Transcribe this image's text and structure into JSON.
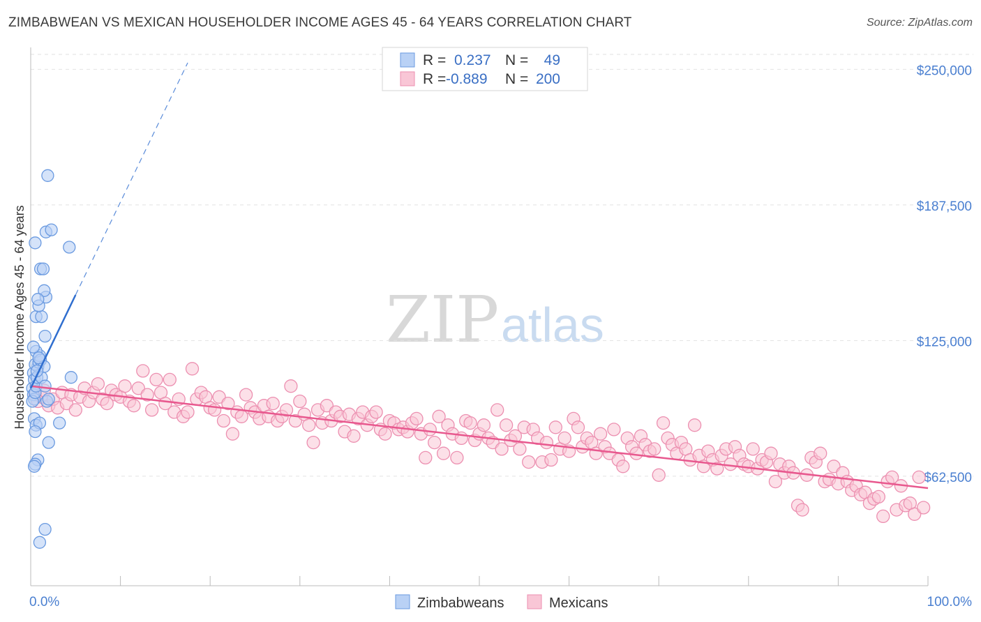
{
  "title": "ZIMBABWEAN VS MEXICAN HOUSEHOLDER INCOME AGES 45 - 64 YEARS CORRELATION CHART",
  "source": "Source: ZipAtlas.com",
  "watermark": {
    "zip": "ZIP",
    "atlas": "atlas"
  },
  "legend": {
    "r_label": "R =",
    "n_label": "N =",
    "rows": [
      {
        "r": "0.237",
        "n": "49"
      },
      {
        "r": "-0.889",
        "n": "200"
      }
    ]
  },
  "bottom_legend": [
    "Zimbabweans",
    "Mexicans"
  ],
  "colors": {
    "zimbabwean_fill": "#b9d1f5",
    "zimbabwean_stroke": "#6a9ae0",
    "zimbabwean_line": "#2f6ecf",
    "mexican_fill": "#f9c6d6",
    "mexican_stroke": "#ec8fb0",
    "mexican_line": "#e8588e",
    "tick_label": "#4a7fd0"
  },
  "chart_data": {
    "type": "scatter",
    "title": "ZIMBABWEAN VS MEXICAN HOUSEHOLDER INCOME AGES 45 - 64 YEARS CORRELATION CHART",
    "xlabel": "",
    "ylabel": "Householder Income Ages 45 - 64 years",
    "xlim": [
      0,
      100
    ],
    "ylim": [
      12000,
      262000
    ],
    "x_tick_labels": [
      "0.0%",
      "100.0%"
    ],
    "y_ticks": [
      62500,
      125000,
      187500,
      250000
    ],
    "y_tick_labels": [
      "$62,500",
      "$125,000",
      "$187,500",
      "$250,000"
    ],
    "grid": "horizontal dashed",
    "legend_position": "top-center",
    "series": [
      {
        "name": "Zimbabweans",
        "r": 0.237,
        "n": 49,
        "trend": {
          "x0": 0,
          "y0": 103000,
          "x1": 5,
          "y1": 146000,
          "dashed_to": [
            17.5,
            253000
          ]
        },
        "points": [
          [
            0.2,
            103000
          ],
          [
            0.3,
            100000
          ],
          [
            0.4,
            98000
          ],
          [
            0.2,
            97000
          ],
          [
            0.5,
            101000
          ],
          [
            0.3,
            110000
          ],
          [
            0.4,
            107000
          ],
          [
            0.6,
            104000
          ],
          [
            0.7,
            108000
          ],
          [
            0.8,
            113000
          ],
          [
            0.5,
            114000
          ],
          [
            0.9,
            115000
          ],
          [
            1.0,
            118000
          ],
          [
            0.6,
            120000
          ],
          [
            1.1,
            116000
          ],
          [
            0.3,
            122000
          ],
          [
            1.2,
            108000
          ],
          [
            1.5,
            113000
          ],
          [
            1.6,
            104000
          ],
          [
            1.8,
            97000
          ],
          [
            2.0,
            98000
          ],
          [
            0.4,
            89000
          ],
          [
            0.6,
            86000
          ],
          [
            1.0,
            87000
          ],
          [
            3.2,
            87000
          ],
          [
            0.5,
            83000
          ],
          [
            2.0,
            78000
          ],
          [
            0.8,
            70000
          ],
          [
            0.5,
            68000
          ],
          [
            0.4,
            67000
          ],
          [
            0.6,
            136000
          ],
          [
            1.2,
            136000
          ],
          [
            0.9,
            141000
          ],
          [
            1.7,
            145000
          ],
          [
            1.5,
            148000
          ],
          [
            0.8,
            144000
          ],
          [
            1.1,
            158000
          ],
          [
            1.4,
            158000
          ],
          [
            0.5,
            170000
          ],
          [
            1.7,
            175000
          ],
          [
            2.3,
            176000
          ],
          [
            4.3,
            168000
          ],
          [
            1.9,
            201000
          ],
          [
            1.6,
            127000
          ],
          [
            0.9,
            117000
          ],
          [
            4.5,
            108000
          ],
          [
            1.6,
            38000
          ],
          [
            1.0,
            32000
          ],
          [
            0.7,
            111000
          ]
        ]
      },
      {
        "name": "Mexicans",
        "r": -0.889,
        "n": 200,
        "trend": {
          "x0": 0,
          "y0": 104000,
          "x1": 100,
          "y1": 57000
        },
        "points": [
          [
            0.5,
            100000
          ],
          [
            0.8,
            97000
          ],
          [
            1.2,
            99000
          ],
          [
            1.5,
            102000
          ],
          [
            2.0,
            95000
          ],
          [
            2.5,
            98000
          ],
          [
            3.0,
            94000
          ],
          [
            3.5,
            101000
          ],
          [
            4.0,
            96000
          ],
          [
            4.5,
            100000
          ],
          [
            5.0,
            93000
          ],
          [
            5.5,
            99000
          ],
          [
            6.0,
            103000
          ],
          [
            6.5,
            97000
          ],
          [
            7.0,
            101000
          ],
          [
            7.5,
            105000
          ],
          [
            8.0,
            98000
          ],
          [
            8.5,
            96000
          ],
          [
            9.0,
            102000
          ],
          [
            9.5,
            100000
          ],
          [
            10.0,
            99000
          ],
          [
            10.5,
            104000
          ],
          [
            11.0,
            97000
          ],
          [
            11.5,
            95000
          ],
          [
            12.0,
            103000
          ],
          [
            12.5,
            111000
          ],
          [
            13.0,
            100000
          ],
          [
            13.5,
            93000
          ],
          [
            14.0,
            107000
          ],
          [
            14.5,
            101000
          ],
          [
            15.0,
            96000
          ],
          [
            15.5,
            107000
          ],
          [
            16.0,
            92000
          ],
          [
            16.5,
            98000
          ],
          [
            17.0,
            90000
          ],
          [
            17.5,
            92000
          ],
          [
            18.0,
            112000
          ],
          [
            18.5,
            98000
          ],
          [
            19.0,
            101000
          ],
          [
            19.5,
            99000
          ],
          [
            20.0,
            94000
          ],
          [
            20.5,
            93000
          ],
          [
            21.0,
            99000
          ],
          [
            21.5,
            88000
          ],
          [
            22.0,
            96000
          ],
          [
            22.5,
            82000
          ],
          [
            23.0,
            92000
          ],
          [
            23.5,
            90000
          ],
          [
            24.0,
            100000
          ],
          [
            24.5,
            94000
          ],
          [
            25.0,
            92000
          ],
          [
            25.5,
            89000
          ],
          [
            26.0,
            95000
          ],
          [
            26.5,
            90000
          ],
          [
            27.0,
            96000
          ],
          [
            27.5,
            88000
          ],
          [
            28.0,
            90000
          ],
          [
            28.5,
            93000
          ],
          [
            29.0,
            104000
          ],
          [
            29.5,
            88000
          ],
          [
            30.0,
            97000
          ],
          [
            30.5,
            91000
          ],
          [
            31.0,
            86000
          ],
          [
            31.5,
            78000
          ],
          [
            32.0,
            93000
          ],
          [
            32.5,
            87000
          ],
          [
            33.0,
            95000
          ],
          [
            33.5,
            88000
          ],
          [
            34.0,
            92000
          ],
          [
            34.5,
            90000
          ],
          [
            35.0,
            83000
          ],
          [
            35.5,
            91000
          ],
          [
            36.0,
            81000
          ],
          [
            36.5,
            89000
          ],
          [
            37.0,
            92000
          ],
          [
            37.5,
            86000
          ],
          [
            38.0,
            90000
          ],
          [
            38.5,
            92000
          ],
          [
            39.0,
            84000
          ],
          [
            39.5,
            82000
          ],
          [
            40.0,
            88000
          ],
          [
            40.5,
            87000
          ],
          [
            41.0,
            84000
          ],
          [
            41.5,
            85000
          ],
          [
            42.0,
            83000
          ],
          [
            42.5,
            87000
          ],
          [
            43.0,
            89000
          ],
          [
            43.5,
            82000
          ],
          [
            44.0,
            71000
          ],
          [
            44.5,
            84000
          ],
          [
            45.0,
            78000
          ],
          [
            45.5,
            90000
          ],
          [
            46.0,
            73000
          ],
          [
            46.5,
            86000
          ],
          [
            47.0,
            82000
          ],
          [
            47.5,
            71000
          ],
          [
            48.0,
            80000
          ],
          [
            48.5,
            88000
          ],
          [
            49.0,
            87000
          ],
          [
            49.5,
            79000
          ],
          [
            50.0,
            82000
          ],
          [
            50.5,
            86000
          ],
          [
            51.0,
            80000
          ],
          [
            51.5,
            78000
          ],
          [
            52.0,
            93000
          ],
          [
            52.5,
            75000
          ],
          [
            53.0,
            86000
          ],
          [
            53.5,
            79000
          ],
          [
            54.0,
            81000
          ],
          [
            54.5,
            75000
          ],
          [
            55.0,
            85000
          ],
          [
            55.5,
            69000
          ],
          [
            56.0,
            84000
          ],
          [
            56.5,
            80000
          ],
          [
            57.0,
            69000
          ],
          [
            57.5,
            78000
          ],
          [
            58.0,
            70000
          ],
          [
            58.5,
            85000
          ],
          [
            59.0,
            75000
          ],
          [
            59.5,
            80000
          ],
          [
            60.0,
            74000
          ],
          [
            60.5,
            89000
          ],
          [
            61.0,
            85000
          ],
          [
            61.5,
            76000
          ],
          [
            62.0,
            80000
          ],
          [
            62.5,
            78000
          ],
          [
            63.0,
            73000
          ],
          [
            63.5,
            82000
          ],
          [
            64.0,
            76000
          ],
          [
            64.5,
            73000
          ],
          [
            65.0,
            84000
          ],
          [
            65.5,
            70000
          ],
          [
            66.0,
            67000
          ],
          [
            66.5,
            80000
          ],
          [
            67.0,
            76000
          ],
          [
            67.5,
            73000
          ],
          [
            68.0,
            81000
          ],
          [
            68.5,
            77000
          ],
          [
            69.0,
            74000
          ],
          [
            69.5,
            75000
          ],
          [
            70.0,
            63000
          ],
          [
            70.5,
            87000
          ],
          [
            71.0,
            80000
          ],
          [
            71.5,
            77000
          ],
          [
            72.0,
            73000
          ],
          [
            72.5,
            78000
          ],
          [
            73.0,
            75000
          ],
          [
            73.5,
            70000
          ],
          [
            74.0,
            86000
          ],
          [
            74.5,
            72000
          ],
          [
            75.0,
            67000
          ],
          [
            75.5,
            74000
          ],
          [
            76.0,
            70000
          ],
          [
            76.5,
            66000
          ],
          [
            77.0,
            72000
          ],
          [
            77.5,
            75000
          ],
          [
            78.0,
            68000
          ],
          [
            78.5,
            76000
          ],
          [
            79.0,
            72000
          ],
          [
            79.5,
            68000
          ],
          [
            80.0,
            67000
          ],
          [
            80.5,
            75000
          ],
          [
            81.0,
            66000
          ],
          [
            81.5,
            70000
          ],
          [
            82.0,
            69000
          ],
          [
            82.5,
            73000
          ],
          [
            83.0,
            60000
          ],
          [
            83.5,
            68000
          ],
          [
            84.0,
            64000
          ],
          [
            84.5,
            67000
          ],
          [
            85.0,
            64000
          ],
          [
            85.5,
            49000
          ],
          [
            86.0,
            47000
          ],
          [
            86.5,
            63000
          ],
          [
            87.0,
            71000
          ],
          [
            87.5,
            69000
          ],
          [
            88.0,
            73000
          ],
          [
            88.5,
            60000
          ],
          [
            89.0,
            61000
          ],
          [
            89.5,
            67000
          ],
          [
            90.0,
            59000
          ],
          [
            90.5,
            64000
          ],
          [
            91.0,
            60000
          ],
          [
            91.5,
            56000
          ],
          [
            92.0,
            58000
          ],
          [
            92.5,
            54000
          ],
          [
            93.0,
            55000
          ],
          [
            93.5,
            50000
          ],
          [
            94.0,
            52000
          ],
          [
            94.5,
            53000
          ],
          [
            95.0,
            44000
          ],
          [
            95.5,
            60000
          ],
          [
            96.0,
            62000
          ],
          [
            96.5,
            47000
          ],
          [
            97.0,
            58000
          ],
          [
            97.5,
            49000
          ],
          [
            98.0,
            50000
          ],
          [
            98.5,
            45000
          ],
          [
            99.0,
            62000
          ],
          [
            99.5,
            48000
          ]
        ]
      }
    ]
  }
}
